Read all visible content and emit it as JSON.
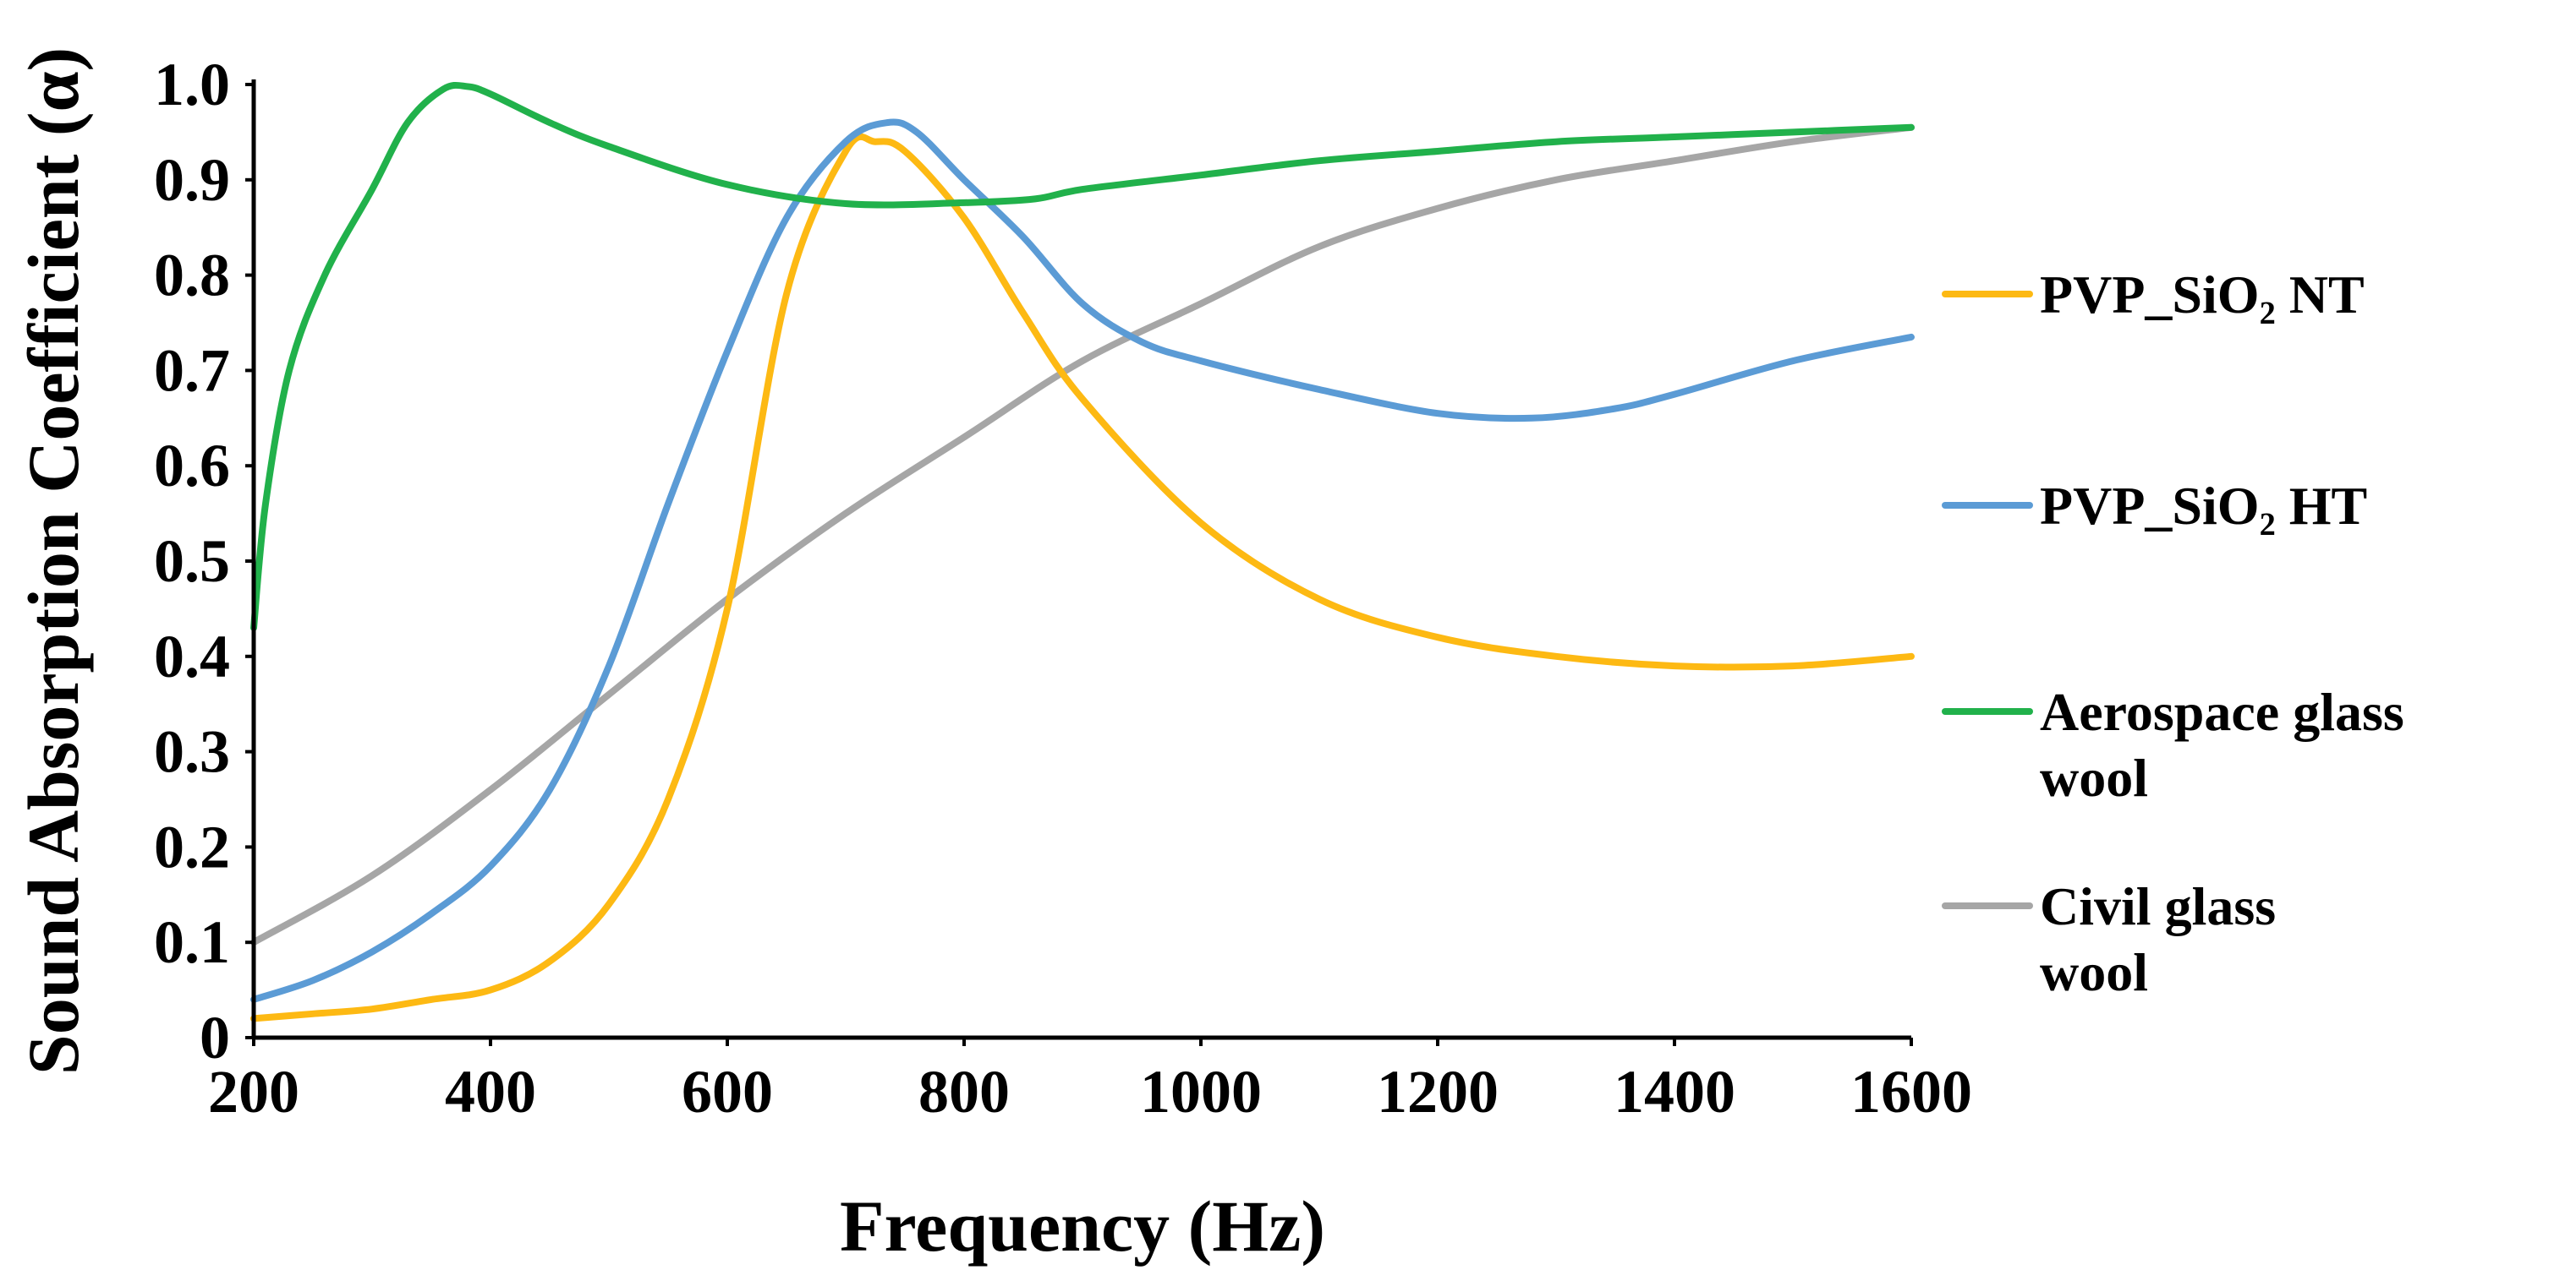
{
  "chart_data": {
    "type": "line",
    "title": "",
    "xlabel": "Frequency (Hz)",
    "ylabel": "Sound Absorption Coefficient (α)",
    "xlim": [
      200,
      1600
    ],
    "ylim": [
      0,
      1.0
    ],
    "x_ticks": [
      200,
      400,
      600,
      800,
      1000,
      1200,
      1400,
      1600
    ],
    "x_tick_labels": [
      "200",
      "400",
      "600",
      "800",
      "1000",
      "1200",
      "1400",
      "1600"
    ],
    "y_ticks": [
      0,
      0.1,
      0.2,
      0.3,
      0.4,
      0.5,
      0.6,
      0.7,
      0.8,
      0.9,
      1.0
    ],
    "y_tick_labels": [
      "0",
      "0.1",
      "0.2",
      "0.3",
      "0.4",
      "0.5",
      "0.6",
      "0.7",
      "0.8",
      "0.9",
      "1.0"
    ],
    "grid": false,
    "legend_position": "right",
    "series": [
      {
        "name": "PVP_SiO₂ NT",
        "legend_lines": [
          "PVP_SiO₂ NT"
        ],
        "color": "#FDB913",
        "x": [
          200,
          250,
          300,
          350,
          400,
          450,
          500,
          550,
          600,
          650,
          700,
          725,
          750,
          800,
          850,
          900,
          1000,
          1100,
          1200,
          1300,
          1400,
          1500,
          1600
        ],
        "y": [
          0.02,
          0.025,
          0.03,
          0.04,
          0.05,
          0.08,
          0.14,
          0.25,
          0.45,
          0.78,
          0.93,
          0.94,
          0.93,
          0.86,
          0.76,
          0.67,
          0.54,
          0.46,
          0.42,
          0.4,
          0.39,
          0.39,
          0.4
        ]
      },
      {
        "name": "PVP_SiO₂ HT",
        "legend_lines": [
          "PVP_SiO₂ HT"
        ],
        "color": "#5B9BD5",
        "x": [
          200,
          250,
          300,
          350,
          400,
          450,
          500,
          550,
          600,
          650,
          700,
          735,
          760,
          800,
          850,
          900,
          950,
          1000,
          1100,
          1200,
          1280,
          1350,
          1400,
          1500,
          1600
        ],
        "y": [
          0.04,
          0.06,
          0.09,
          0.13,
          0.18,
          0.26,
          0.39,
          0.56,
          0.72,
          0.86,
          0.94,
          0.96,
          0.95,
          0.9,
          0.84,
          0.77,
          0.73,
          0.71,
          0.68,
          0.655,
          0.65,
          0.66,
          0.675,
          0.71,
          0.735
        ]
      },
      {
        "name": "Aerospace glass wool",
        "legend_lines": [
          "Aerospace glass",
          "wool"
        ],
        "color": "#21B14B",
        "x": [
          200,
          210,
          230,
          260,
          300,
          330,
          360,
          380,
          400,
          450,
          500,
          600,
          700,
          800,
          860,
          900,
          1000,
          1100,
          1200,
          1300,
          1400,
          1500,
          1600
        ],
        "y": [
          0.43,
          0.56,
          0.7,
          0.8,
          0.89,
          0.96,
          0.995,
          0.998,
          0.99,
          0.96,
          0.935,
          0.895,
          0.875,
          0.876,
          0.88,
          0.89,
          0.905,
          0.92,
          0.93,
          0.94,
          0.945,
          0.95,
          0.955
        ]
      },
      {
        "name": "Civil glass wool",
        "legend_lines": [
          "Civil glass",
          "wool"
        ],
        "color": "#A6A6A6",
        "x": [
          200,
          300,
          400,
          500,
          600,
          700,
          800,
          900,
          1000,
          1100,
          1200,
          1300,
          1400,
          1500,
          1600
        ],
        "y": [
          0.1,
          0.17,
          0.26,
          0.36,
          0.46,
          0.55,
          0.63,
          0.71,
          0.77,
          0.83,
          0.87,
          0.9,
          0.92,
          0.94,
          0.955
        ]
      }
    ]
  }
}
